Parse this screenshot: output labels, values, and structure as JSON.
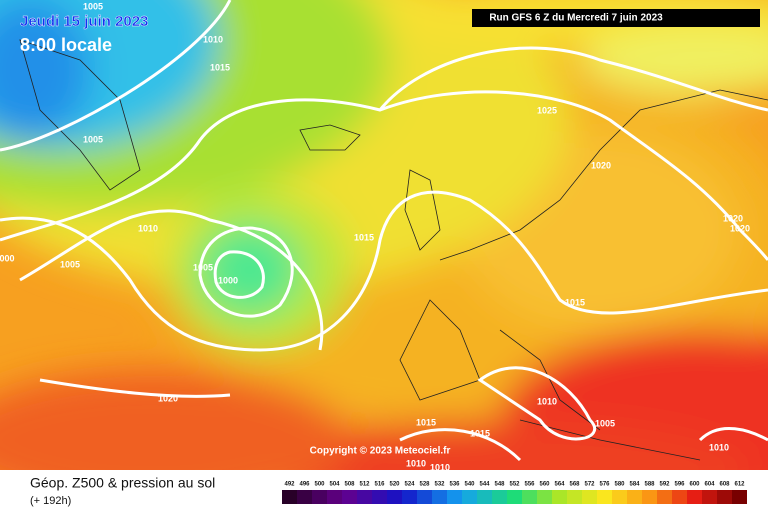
{
  "header": {
    "date": "Jeudi 15 juin 2023",
    "time": "8:00 locale",
    "run": "Run GFS 6 Z du Mercredi 7 juin 2023"
  },
  "map": {
    "isobar_labels": [
      "1005",
      "1010",
      "1015",
      "1005",
      "1025",
      "1020",
      "1010",
      "1015",
      "1020",
      "1020",
      "000",
      "1005",
      "1005",
      "1000",
      "1015",
      "1020",
      "1010",
      "1015",
      "1005",
      "1015",
      "1010",
      "1010",
      "1010"
    ],
    "copyright": "Copyright © 2023 Meteociel.fr"
  },
  "footer": {
    "title": "Géop. Z500 & pression au sol",
    "subtitle": "(+ 192h)",
    "scale": [
      492,
      496,
      500,
      504,
      508,
      512,
      516,
      520,
      524,
      528,
      532,
      536,
      540,
      544,
      548,
      552,
      556,
      560,
      564,
      568,
      572,
      576,
      580,
      584,
      588,
      592,
      596,
      600,
      604,
      608,
      612
    ]
  }
}
